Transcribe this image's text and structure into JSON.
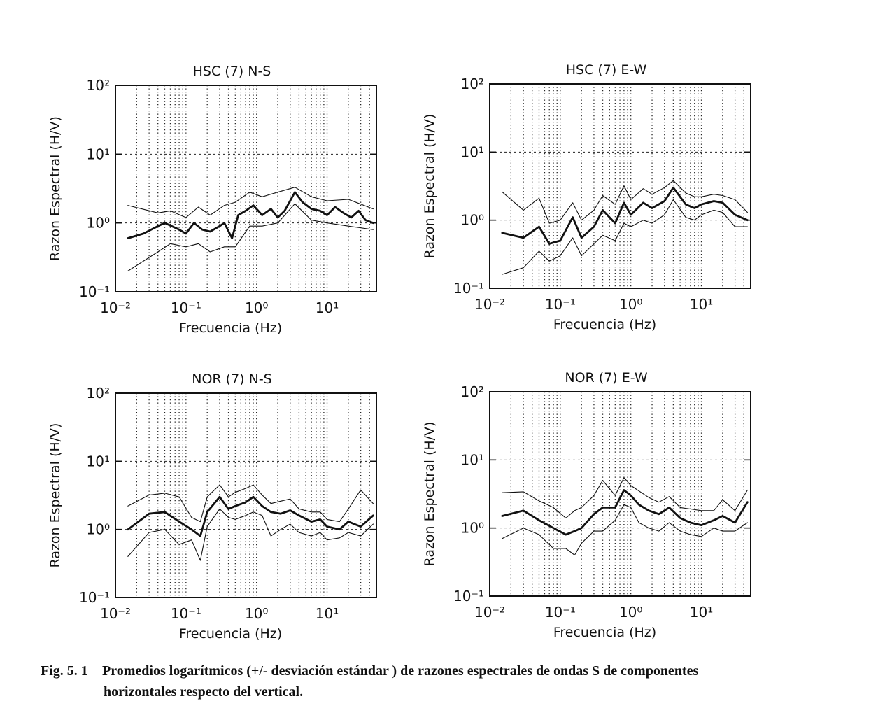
{
  "chart_data": [
    {
      "type": "line",
      "title": "HSC (7)   N-S",
      "xlabel": "Frecuencia (Hz)",
      "ylabel": "Razon Espectral (H/V)",
      "x_scale": "log",
      "y_scale": "log",
      "xlim": [
        0.01,
        50
      ],
      "ylim": [
        0.1,
        100
      ],
      "x_ticks": [
        "10⁻²",
        "10⁻¹",
        "10⁰",
        "10¹"
      ],
      "y_ticks": [
        "10⁻¹",
        "10⁰",
        "10¹",
        "10²"
      ],
      "grid": true,
      "series": [
        {
          "role": "mean",
          "x": [
            0.015,
            0.025,
            0.04,
            0.05,
            0.08,
            0.1,
            0.13,
            0.17,
            0.22,
            0.3,
            0.35,
            0.45,
            0.55,
            0.7,
            0.9,
            1.2,
            1.6,
            2.0,
            2.5,
            3.5,
            4.5,
            6,
            8,
            10,
            13,
            17,
            22,
            28,
            35,
            45
          ],
          "y": [
            0.6,
            0.7,
            0.9,
            1.0,
            0.8,
            0.7,
            1.0,
            0.8,
            0.75,
            0.9,
            1.0,
            0.6,
            1.3,
            1.5,
            1.8,
            1.3,
            1.6,
            1.2,
            1.5,
            2.8,
            2.0,
            1.6,
            1.5,
            1.3,
            1.7,
            1.4,
            1.2,
            1.5,
            1.1,
            1.0
          ]
        },
        {
          "role": "plus-std",
          "x": [
            0.015,
            0.04,
            0.06,
            0.1,
            0.15,
            0.22,
            0.35,
            0.5,
            0.8,
            1.2,
            2.0,
            3.5,
            6,
            10,
            20,
            45
          ],
          "y": [
            1.8,
            1.4,
            1.5,
            1.2,
            1.7,
            1.3,
            1.8,
            2.0,
            2.8,
            2.4,
            2.8,
            3.3,
            2.4,
            2.1,
            2.2,
            1.6
          ]
        },
        {
          "role": "minus-std",
          "x": [
            0.015,
            0.04,
            0.06,
            0.1,
            0.15,
            0.22,
            0.35,
            0.5,
            0.8,
            1.2,
            2.0,
            3.5,
            6,
            10,
            20,
            45
          ],
          "y": [
            0.2,
            0.38,
            0.5,
            0.45,
            0.5,
            0.38,
            0.45,
            0.45,
            0.9,
            0.9,
            1.0,
            1.9,
            1.1,
            1.0,
            0.9,
            0.8
          ]
        }
      ]
    },
    {
      "type": "line",
      "title": "HSC (7)   E-W",
      "xlabel": "Frecuencia (Hz)",
      "ylabel": "Razon Espectral (H/V)",
      "x_scale": "log",
      "y_scale": "log",
      "xlim": [
        0.01,
        50
      ],
      "ylim": [
        0.1,
        100
      ],
      "x_ticks": [
        "10⁻²",
        "10⁻¹",
        "10⁰",
        "10¹"
      ],
      "y_ticks": [
        "10⁻¹",
        "10⁰",
        "10¹",
        "10²"
      ],
      "grid": true,
      "series": [
        {
          "role": "mean",
          "x": [
            0.015,
            0.03,
            0.05,
            0.07,
            0.1,
            0.15,
            0.2,
            0.3,
            0.4,
            0.6,
            0.8,
            1.0,
            1.5,
            2.0,
            3.0,
            4.0,
            6,
            8,
            10,
            15,
            20,
            30,
            45
          ],
          "y": [
            0.65,
            0.55,
            0.8,
            0.45,
            0.5,
            1.1,
            0.55,
            0.8,
            1.4,
            0.9,
            1.8,
            1.2,
            1.8,
            1.5,
            1.9,
            3.0,
            1.7,
            1.5,
            1.7,
            1.9,
            1.8,
            1.2,
            1.0
          ]
        },
        {
          "role": "plus-std",
          "x": [
            0.015,
            0.03,
            0.05,
            0.07,
            0.1,
            0.15,
            0.2,
            0.3,
            0.4,
            0.6,
            0.8,
            1.0,
            1.5,
            2.0,
            3.0,
            4.0,
            6,
            8,
            10,
            15,
            20,
            30,
            45
          ],
          "y": [
            2.6,
            1.4,
            2.1,
            0.9,
            1.0,
            1.8,
            1.0,
            1.4,
            2.3,
            1.7,
            3.2,
            2.0,
            2.9,
            2.4,
            3.0,
            3.8,
            2.5,
            2.2,
            2.2,
            2.4,
            2.3,
            2.0,
            1.3
          ]
        },
        {
          "role": "minus-std",
          "x": [
            0.015,
            0.03,
            0.05,
            0.07,
            0.1,
            0.15,
            0.2,
            0.3,
            0.4,
            0.6,
            0.8,
            1.0,
            1.5,
            2.0,
            3.0,
            4.0,
            6,
            8,
            10,
            15,
            20,
            30,
            45
          ],
          "y": [
            0.16,
            0.2,
            0.35,
            0.25,
            0.3,
            0.55,
            0.3,
            0.45,
            0.6,
            0.5,
            0.9,
            0.8,
            1.0,
            0.9,
            1.2,
            2.0,
            1.1,
            1.0,
            1.2,
            1.4,
            1.3,
            0.8,
            0.8
          ]
        }
      ]
    },
    {
      "type": "line",
      "title": "NOR (7)   N-S",
      "xlabel": "Frecuencia (Hz)",
      "ylabel": "Razon Espectral (H/V)",
      "x_scale": "log",
      "y_scale": "log",
      "xlim": [
        0.01,
        50
      ],
      "ylim": [
        0.1,
        100
      ],
      "x_ticks": [
        "10⁻²",
        "10⁻¹",
        "10⁰",
        "10¹"
      ],
      "y_ticks": [
        "10⁻¹",
        "10⁰",
        "10¹",
        "10²"
      ],
      "grid": true,
      "series": [
        {
          "role": "mean",
          "x": [
            0.015,
            0.03,
            0.05,
            0.08,
            0.12,
            0.16,
            0.2,
            0.3,
            0.4,
            0.5,
            0.7,
            0.9,
            1.2,
            1.6,
            2.2,
            3.0,
            4.0,
            6,
            8,
            10,
            15,
            20,
            30,
            45
          ],
          "y": [
            1.0,
            1.7,
            1.8,
            1.3,
            1.0,
            0.8,
            1.8,
            3.0,
            2.0,
            2.2,
            2.5,
            3.0,
            2.2,
            1.8,
            1.7,
            1.9,
            1.6,
            1.3,
            1.4,
            1.1,
            1.0,
            1.3,
            1.1,
            1.6
          ]
        },
        {
          "role": "plus-std",
          "x": [
            0.015,
            0.03,
            0.05,
            0.08,
            0.12,
            0.16,
            0.2,
            0.3,
            0.4,
            0.5,
            0.7,
            0.9,
            1.2,
            1.6,
            2.2,
            3.0,
            4.0,
            6,
            8,
            10,
            15,
            20,
            30,
            45
          ],
          "y": [
            2.2,
            3.2,
            3.4,
            3.0,
            1.5,
            1.3,
            3.0,
            4.5,
            3.0,
            3.5,
            4.0,
            4.5,
            3.2,
            2.4,
            2.6,
            2.8,
            2.0,
            1.8,
            1.8,
            1.4,
            1.3,
            2.0,
            3.8,
            2.4
          ]
        },
        {
          "role": "minus-std",
          "x": [
            0.015,
            0.03,
            0.05,
            0.08,
            0.12,
            0.16,
            0.2,
            0.3,
            0.4,
            0.5,
            0.7,
            0.9,
            1.2,
            1.6,
            2.2,
            3.0,
            4.0,
            6,
            8,
            10,
            15,
            20,
            30,
            45
          ],
          "y": [
            0.4,
            0.9,
            1.0,
            0.6,
            0.7,
            0.35,
            1.1,
            2.0,
            1.5,
            1.4,
            1.6,
            1.8,
            1.6,
            0.8,
            1.0,
            1.2,
            0.9,
            0.8,
            0.9,
            0.7,
            0.75,
            0.9,
            0.8,
            1.2
          ]
        }
      ]
    },
    {
      "type": "line",
      "title": "NOR (7)   E-W",
      "xlabel": "Frecuencia (Hz)",
      "ylabel": "Razon Espectral (H/V)",
      "x_scale": "log",
      "y_scale": "log",
      "xlim": [
        0.01,
        50
      ],
      "ylim": [
        0.1,
        100
      ],
      "x_ticks": [
        "10⁻²",
        "10⁻¹",
        "10⁰",
        "10¹"
      ],
      "y_ticks": [
        "10⁻¹",
        "10⁰",
        "10¹",
        "10²"
      ],
      "grid": true,
      "series": [
        {
          "role": "mean",
          "x": [
            0.015,
            0.03,
            0.05,
            0.08,
            0.12,
            0.16,
            0.2,
            0.3,
            0.4,
            0.6,
            0.8,
            1.0,
            1.3,
            1.8,
            2.5,
            3.5,
            5,
            7,
            10,
            15,
            20,
            30,
            45
          ],
          "y": [
            1.5,
            1.8,
            1.3,
            1.0,
            0.8,
            0.9,
            1.0,
            1.6,
            2.0,
            2.0,
            3.6,
            3.0,
            2.2,
            1.8,
            1.6,
            2.0,
            1.4,
            1.2,
            1.1,
            1.3,
            1.5,
            1.2,
            2.4
          ]
        },
        {
          "role": "plus-std",
          "x": [
            0.015,
            0.03,
            0.05,
            0.08,
            0.12,
            0.16,
            0.2,
            0.3,
            0.4,
            0.6,
            0.8,
            1.0,
            1.3,
            1.8,
            2.5,
            3.5,
            5,
            7,
            10,
            15,
            20,
            30,
            45
          ],
          "y": [
            3.3,
            3.4,
            2.5,
            2.0,
            1.4,
            1.8,
            2.0,
            3.0,
            5.0,
            3.0,
            5.5,
            4.2,
            3.5,
            2.8,
            2.4,
            2.9,
            2.0,
            1.9,
            1.8,
            1.8,
            2.6,
            1.8,
            3.6
          ]
        },
        {
          "role": "minus-std",
          "x": [
            0.015,
            0.03,
            0.05,
            0.08,
            0.12,
            0.16,
            0.2,
            0.3,
            0.4,
            0.6,
            0.8,
            1.0,
            1.3,
            1.8,
            2.5,
            3.5,
            5,
            7,
            10,
            15,
            20,
            30,
            45
          ],
          "y": [
            0.7,
            1.0,
            0.8,
            0.5,
            0.5,
            0.4,
            0.6,
            0.9,
            0.9,
            1.3,
            2.2,
            2.0,
            1.2,
            1.0,
            0.9,
            1.2,
            0.9,
            0.8,
            0.75,
            1.0,
            0.9,
            0.9,
            1.2
          ]
        }
      ]
    }
  ],
  "caption": {
    "number": "Fig. 5. 1",
    "line1": "Promedios logarítmicos (+/- desviación estándar ) de  razones espectrales de ondas S de componentes",
    "line2": "horizontales respecto del vertical."
  }
}
